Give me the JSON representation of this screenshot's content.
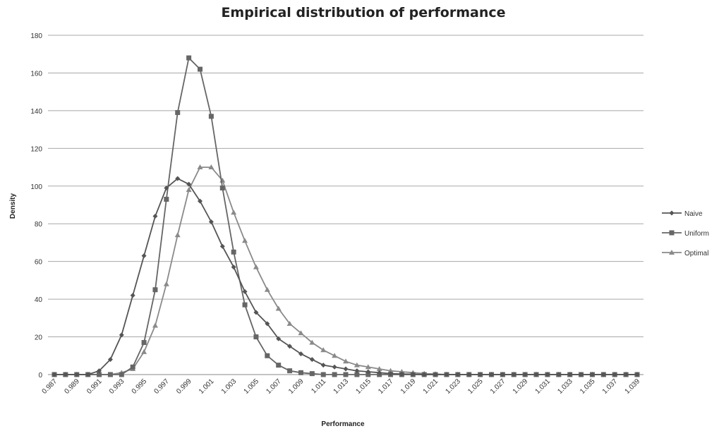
{
  "chart_data": {
    "type": "line",
    "title": "Empirical distribution of performance",
    "xlabel": "Performance",
    "ylabel": "Density",
    "ylim": [
      0,
      180
    ],
    "yticks": [
      "0",
      "20",
      "40",
      "60",
      "80",
      "100",
      "120",
      "140",
      "160",
      "180"
    ],
    "grid": "horizontal",
    "legend_position": "right",
    "x": [
      "0.987",
      "0.988",
      "0.989",
      "0.990",
      "0.991",
      "0.992",
      "0.993",
      "0.994",
      "0.995",
      "0.996",
      "0.997",
      "0.998",
      "0.999",
      "1.000",
      "1.001",
      "1.002",
      "1.003",
      "1.004",
      "1.005",
      "1.006",
      "1.007",
      "1.008",
      "1.009",
      "1.010",
      "1.011",
      "1.012",
      "1.013",
      "1.014",
      "1.015",
      "1.016",
      "1.017",
      "1.018",
      "1.019",
      "1.020",
      "1.021",
      "1.022",
      "1.023",
      "1.024",
      "1.025",
      "1.026",
      "1.027",
      "1.028",
      "1.029",
      "1.030",
      "1.031",
      "1.032",
      "1.033",
      "1.034",
      "1.035",
      "1.036",
      "1.037",
      "1.038",
      "1.039"
    ],
    "xticklabels": [
      "0.987",
      "0.989",
      "0.991",
      "0.993",
      "0.995",
      "0.997",
      "0.999",
      "1.001",
      "1.003",
      "1.005",
      "1.007",
      "1.009",
      "1.011",
      "1.013",
      "1.015",
      "1.017",
      "1.019",
      "1.021",
      "1.023",
      "1.025",
      "1.027",
      "1.029",
      "1.031",
      "1.033",
      "1.035",
      "1.037",
      "1.039"
    ],
    "series": [
      {
        "name": "Naive",
        "color": "#555555",
        "marker": "diamond",
        "values": [
          0,
          0,
          0,
          0,
          2,
          8,
          21,
          42,
          63,
          84,
          99,
          104,
          101,
          92,
          81,
          68,
          57,
          44,
          33,
          27,
          19,
          15,
          11,
          8,
          5,
          4,
          3,
          2,
          1.5,
          1,
          0.5,
          0.3,
          0.2,
          0,
          0,
          0,
          0,
          0,
          0,
          0,
          0,
          0,
          0,
          0,
          0,
          0,
          0,
          0,
          0,
          0,
          0,
          0,
          0
        ]
      },
      {
        "name": "Uniform",
        "color": "#666666",
        "marker": "square",
        "values": [
          0,
          0,
          0,
          0,
          0,
          0,
          0,
          4,
          17,
          45,
          93,
          139,
          168,
          162,
          137,
          99,
          65,
          37,
          20,
          10,
          5,
          2,
          1,
          0.5,
          0,
          0,
          0,
          0,
          0,
          0,
          0,
          0,
          0,
          0,
          0,
          0,
          0,
          0,
          0,
          0,
          0,
          0,
          0,
          0,
          0,
          0,
          0,
          0,
          0,
          0,
          0,
          0,
          0
        ]
      },
      {
        "name": "Optimal",
        "color": "#8a8a8a",
        "marker": "triangle",
        "values": [
          0,
          0,
          0,
          0,
          0,
          0,
          1,
          3,
          12,
          26,
          48,
          74,
          98,
          110,
          110,
          103,
          86,
          71,
          57,
          45,
          35,
          27,
          22,
          17,
          13,
          10,
          7,
          5,
          4,
          3,
          2,
          1.5,
          1,
          0.5,
          0.3,
          0,
          0,
          0,
          0,
          0,
          0,
          0,
          0,
          0,
          0,
          0,
          0,
          0,
          0,
          0,
          0,
          0,
          0
        ]
      }
    ]
  }
}
